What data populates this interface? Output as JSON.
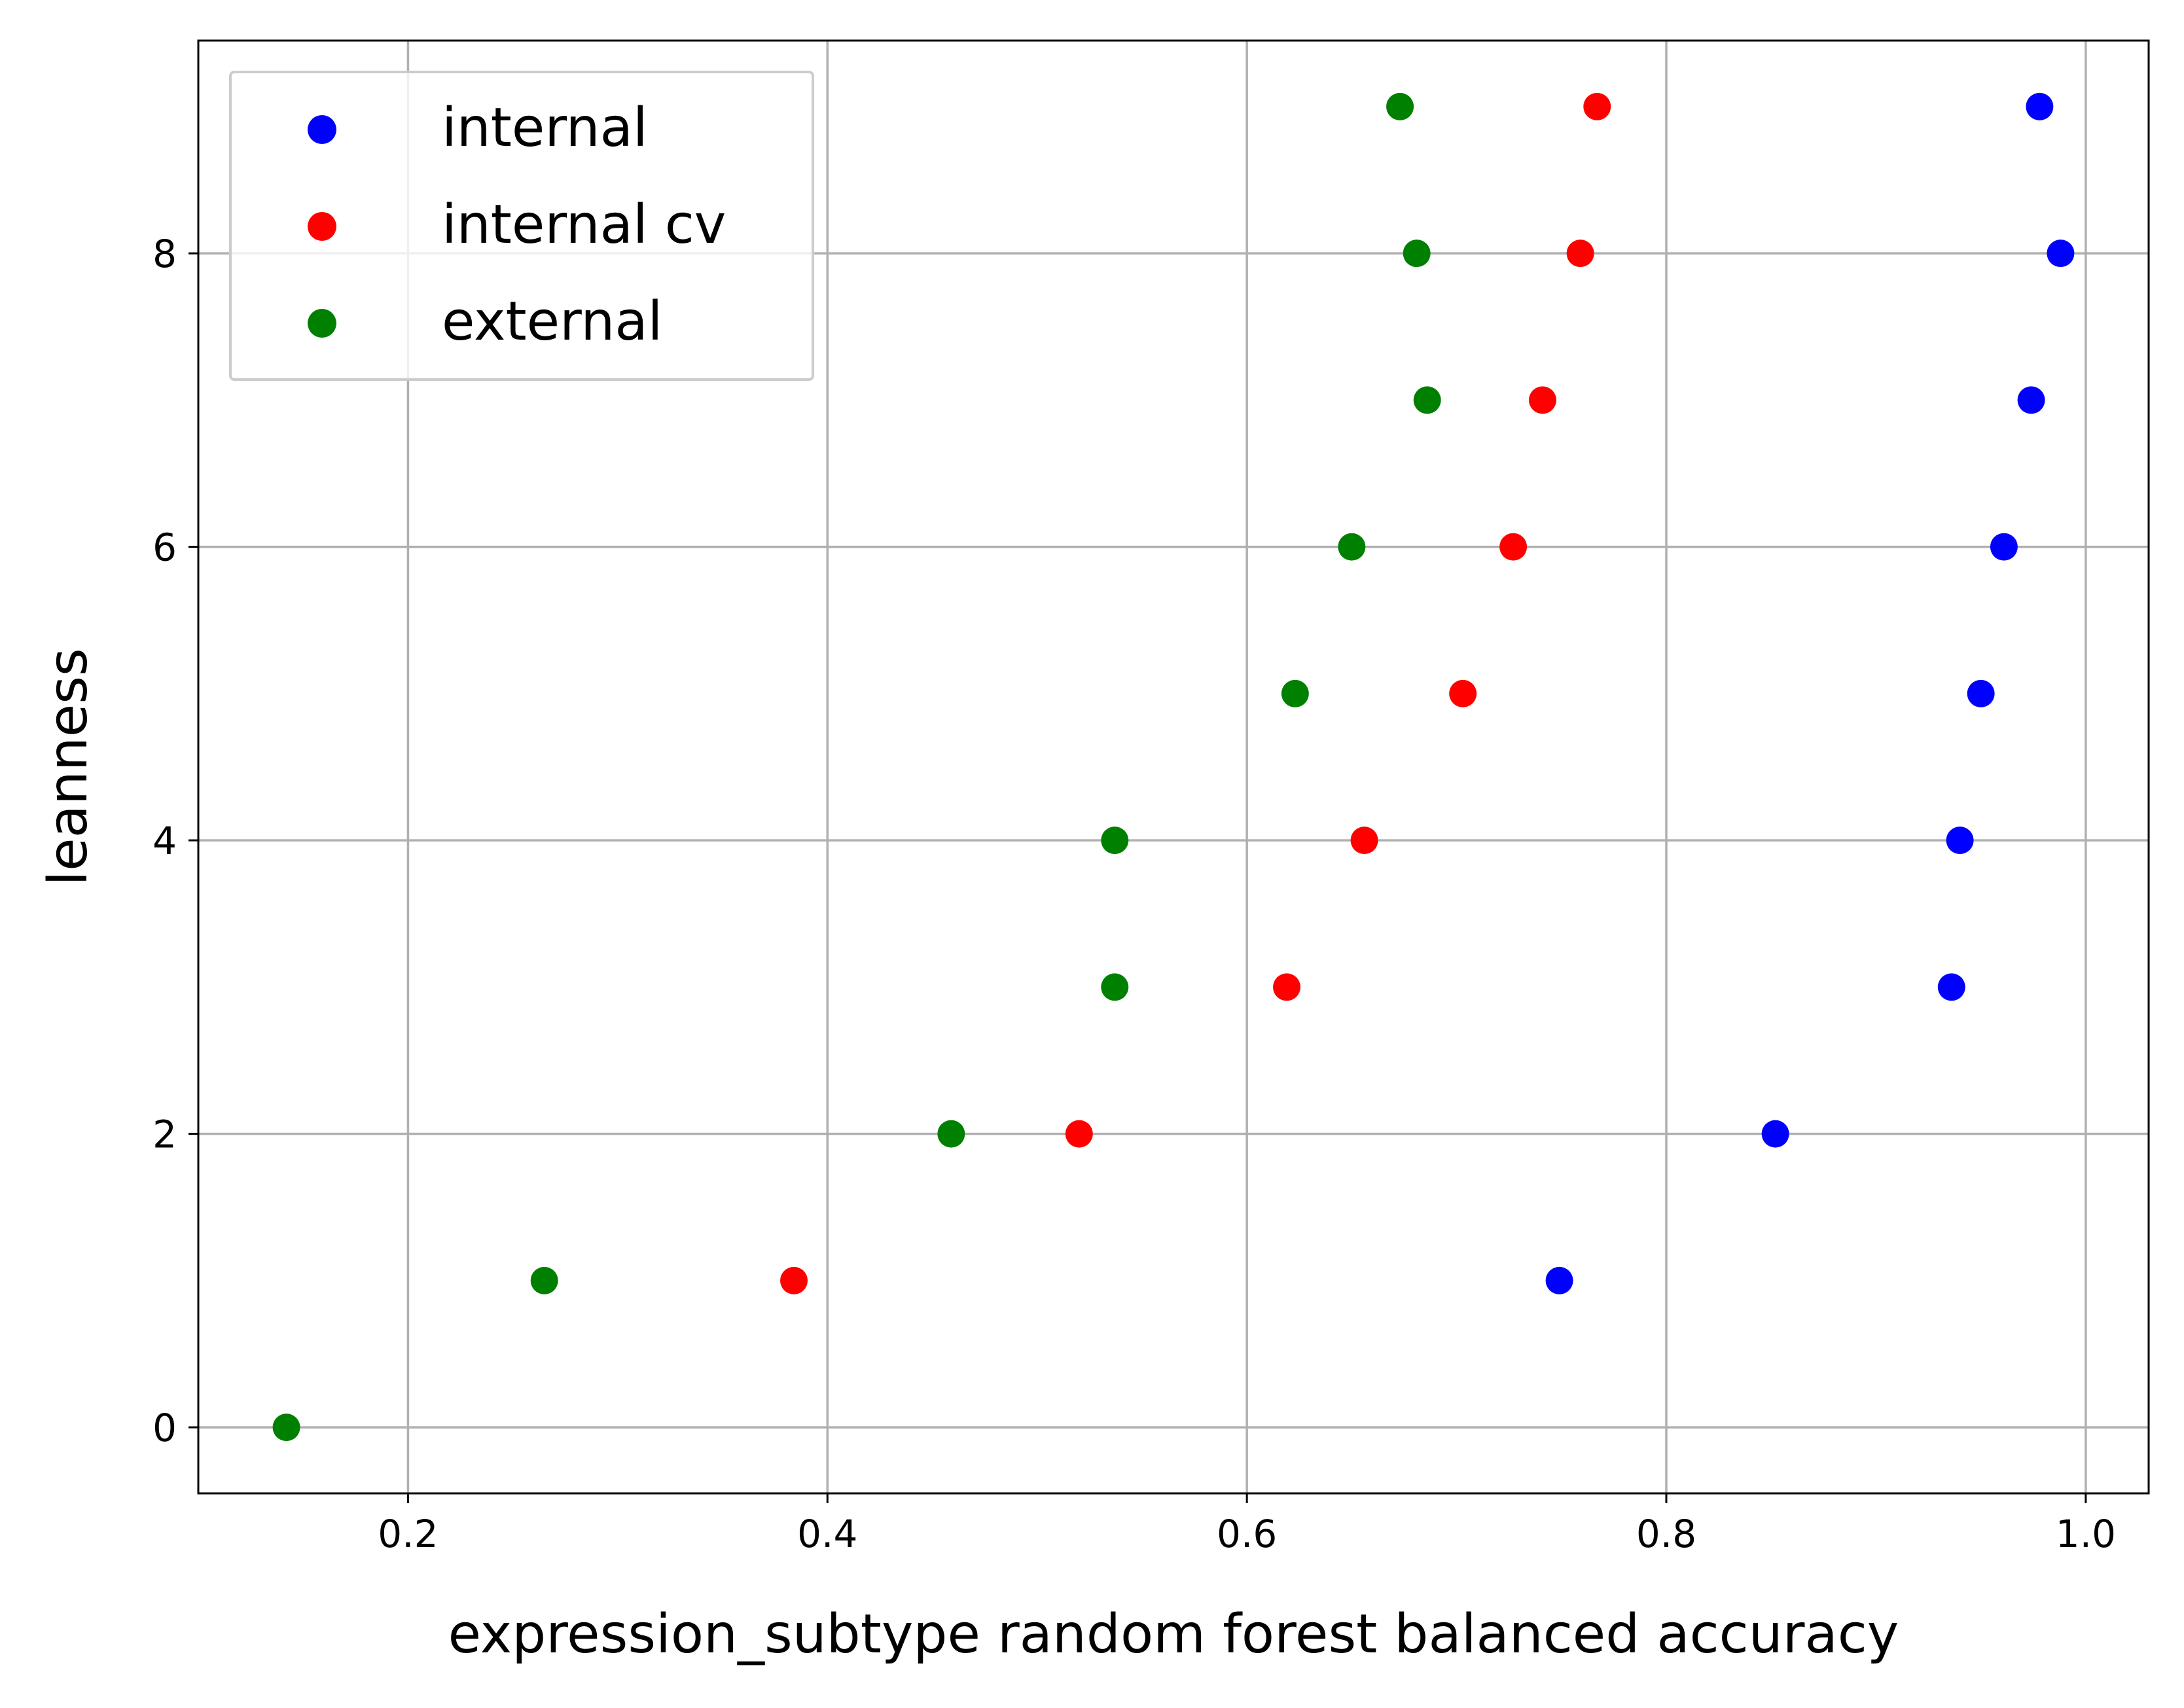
{
  "chart_data": {
    "type": "scatter",
    "xlabel": "expression_subtype random forest balanced accuracy",
    "ylabel": "leanness",
    "xlim": [
      0.1,
      1.03
    ],
    "ylim": [
      -0.45,
      9.45
    ],
    "x_ticks": [
      0.2,
      0.4,
      0.6,
      0.8,
      1.0
    ],
    "x_tick_labels": [
      "0.2",
      "0.4",
      "0.6",
      "0.8",
      "1.0"
    ],
    "y_ticks": [
      0,
      2,
      4,
      6,
      8
    ],
    "y_tick_labels": [
      "0",
      "2",
      "4",
      "6",
      "8"
    ],
    "grid": true,
    "legend": {
      "position": "top-left"
    },
    "series": [
      {
        "name": "internal",
        "color": "#0000ff",
        "points": [
          {
            "x": 0.749,
            "y": 1
          },
          {
            "x": 0.852,
            "y": 2
          },
          {
            "x": 0.936,
            "y": 3
          },
          {
            "x": 0.94,
            "y": 4
          },
          {
            "x": 0.95,
            "y": 5
          },
          {
            "x": 0.961,
            "y": 6
          },
          {
            "x": 0.974,
            "y": 7
          },
          {
            "x": 0.988,
            "y": 8
          },
          {
            "x": 0.978,
            "y": 9
          }
        ]
      },
      {
        "name": "internal cv",
        "color": "#ff0000",
        "points": [
          {
            "x": 0.384,
            "y": 1
          },
          {
            "x": 0.52,
            "y": 2
          },
          {
            "x": 0.619,
            "y": 3
          },
          {
            "x": 0.656,
            "y": 4
          },
          {
            "x": 0.703,
            "y": 5
          },
          {
            "x": 0.727,
            "y": 6
          },
          {
            "x": 0.741,
            "y": 7
          },
          {
            "x": 0.759,
            "y": 8
          },
          {
            "x": 0.767,
            "y": 9
          }
        ]
      },
      {
        "name": "external",
        "color": "#008000",
        "points": [
          {
            "x": 0.142,
            "y": 0
          },
          {
            "x": 0.265,
            "y": 1
          },
          {
            "x": 0.459,
            "y": 2
          },
          {
            "x": 0.537,
            "y": 3
          },
          {
            "x": 0.537,
            "y": 4
          },
          {
            "x": 0.623,
            "y": 5
          },
          {
            "x": 0.65,
            "y": 6
          },
          {
            "x": 0.686,
            "y": 7
          },
          {
            "x": 0.681,
            "y": 8
          },
          {
            "x": 0.673,
            "y": 9
          }
        ]
      }
    ]
  }
}
